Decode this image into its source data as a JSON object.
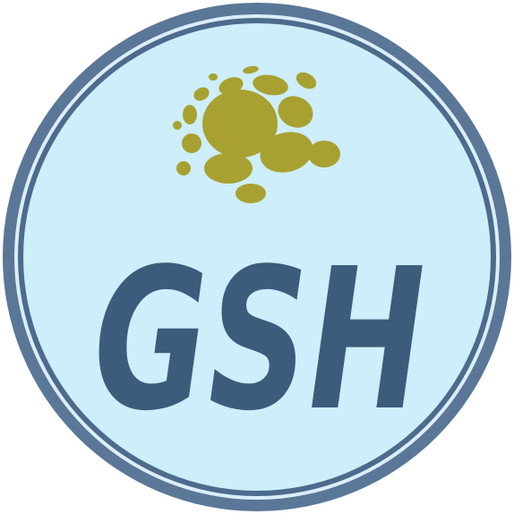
{
  "logo": {
    "text": "GSH",
    "colors": {
      "background": "#ffffff",
      "outer_ring": "#5b7797",
      "thin_ring": "#dbeef9",
      "inner_ring": "#4d6b8c",
      "fill": "#cdeefa",
      "text": "#3d5c7c",
      "sun": "#a8a131"
    },
    "emblem": "sun-dots-icon"
  }
}
